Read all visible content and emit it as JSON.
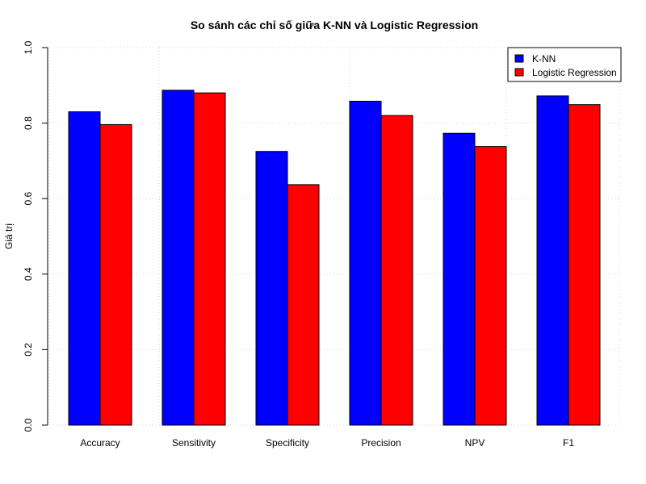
{
  "chart_data": {
    "type": "bar",
    "title": "So sánh các chỉ số giữa K-NN và Logistic Regression",
    "xlabel": "",
    "ylabel": "Giá trị",
    "ylim": [
      0,
      1
    ],
    "yticks": [
      "0.0",
      "0.2",
      "0.4",
      "0.6",
      "0.8",
      "1.0"
    ],
    "ytick_values": [
      0,
      0.2,
      0.4,
      0.6,
      0.8,
      1.0
    ],
    "grid": true,
    "legend_position": "top-right",
    "categories": [
      "Accuracy",
      "Sensitivity",
      "Specificity",
      "Precision",
      "NPV",
      "F1"
    ],
    "series": [
      {
        "name": "K-NN",
        "color": "#0000ff",
        "values": [
          0.83,
          0.887,
          0.725,
          0.858,
          0.773,
          0.872
        ]
      },
      {
        "name": "Logistic Regression",
        "color": "#ff0000",
        "values": [
          0.796,
          0.88,
          0.637,
          0.82,
          0.738,
          0.849
        ]
      }
    ]
  }
}
